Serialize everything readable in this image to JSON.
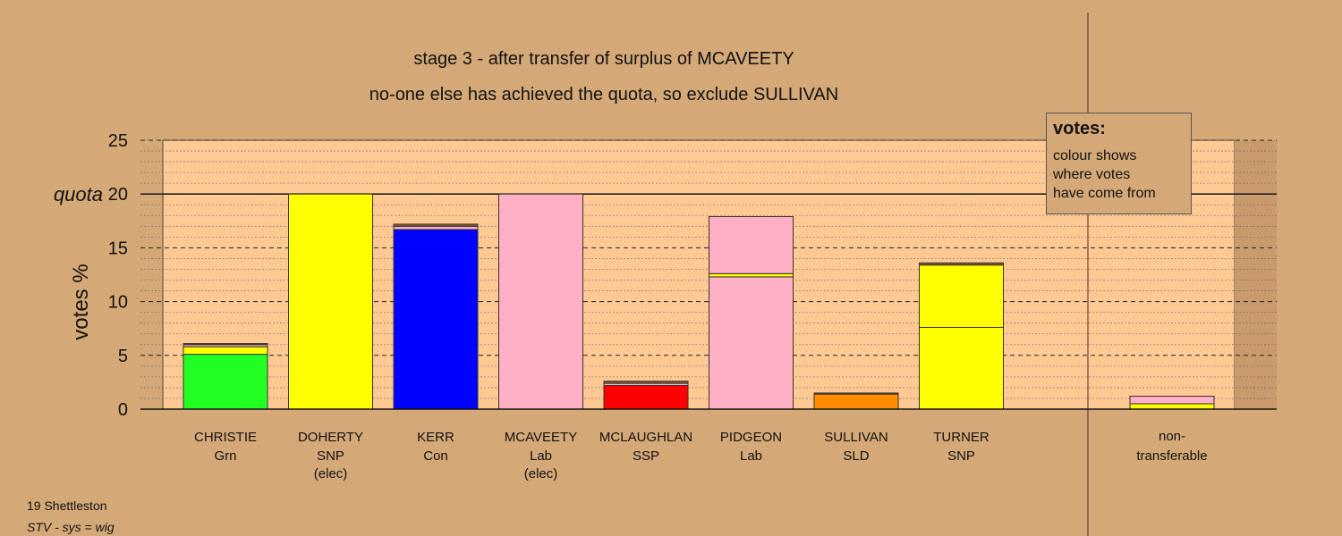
{
  "chart_data": {
    "type": "bar",
    "title": "stage 3 - after transfer of surplus of MCAVEETY",
    "subtitle": "no-one else has achieved the quota, so exclude SULLIVAN",
    "ylabel": "votes %",
    "quota_label": "quota",
    "quota": 20,
    "ylim": [
      0,
      25
    ],
    "yticks": [
      0,
      5,
      10,
      15,
      20,
      25
    ],
    "grid": true,
    "candidates": [
      {
        "name": "CHRISTIE",
        "party": "Grn",
        "note": "",
        "segments": [
          {
            "source": "Grn",
            "color": "#22ff22",
            "value": 5.1
          },
          {
            "source": "SNP",
            "color": "#ffff00",
            "value": 0.7
          },
          {
            "source": "Lab",
            "color": "#ffb0c4",
            "value": 0.2
          },
          {
            "source": "other",
            "color": "#8b5a2b",
            "value": 0.1
          }
        ]
      },
      {
        "name": "DOHERTY",
        "party": "SNP",
        "note": "(elec)",
        "segments": [
          {
            "source": "SNP",
            "color": "#ffff00",
            "value": 20.0
          }
        ]
      },
      {
        "name": "KERR",
        "party": "Con",
        "note": "",
        "segments": [
          {
            "source": "Con",
            "color": "#0000ff",
            "value": 16.7
          },
          {
            "source": "Lab",
            "color": "#ffb0c4",
            "value": 0.3
          },
          {
            "source": "other",
            "color": "#8b5a2b",
            "value": 0.2
          }
        ]
      },
      {
        "name": "MCAVEETY",
        "party": "Lab",
        "note": "(elec)",
        "segments": [
          {
            "source": "Lab",
            "color": "#ffb0c4",
            "value": 20.0
          }
        ]
      },
      {
        "name": "MCLAUGHLAN",
        "party": "SSP",
        "note": "",
        "segments": [
          {
            "source": "SSP",
            "color": "#ff0000",
            "value": 2.2
          },
          {
            "source": "Lab",
            "color": "#ffb0c4",
            "value": 0.2
          },
          {
            "source": "other",
            "color": "#8b5a2b",
            "value": 0.2
          }
        ]
      },
      {
        "name": "PIDGEON",
        "party": "Lab",
        "note": "",
        "segments": [
          {
            "source": "Lab",
            "color": "#ffb0c4",
            "value": 12.3
          },
          {
            "source": "SNP",
            "color": "#ffff00",
            "value": 0.3
          },
          {
            "source": "Lab",
            "color": "#ffb0c4",
            "value": 5.3
          }
        ]
      },
      {
        "name": "SULLIVAN",
        "party": "SLD",
        "note": "",
        "segments": [
          {
            "source": "SLD",
            "color": "#ff8c00",
            "value": 1.4
          },
          {
            "source": "other",
            "color": "#8b5a2b",
            "value": 0.1
          }
        ]
      },
      {
        "name": "TURNER",
        "party": "SNP",
        "note": "",
        "segments": [
          {
            "source": "SNP",
            "color": "#ffff00",
            "value": 7.6
          },
          {
            "source": "SNP",
            "color": "#ffff00",
            "value": 5.8
          },
          {
            "source": "other",
            "color": "#8b5a2b",
            "value": 0.2
          }
        ]
      }
    ],
    "non_transferable": {
      "label_line1": "non-",
      "label_line2": "transferable",
      "segments": [
        {
          "source": "SNP",
          "color": "#ffff00",
          "value": 0.5
        },
        {
          "source": "Lab",
          "color": "#ffb0c4",
          "value": 0.7
        }
      ]
    }
  },
  "legend": {
    "title": "votes:",
    "lines": [
      "colour shows",
      "where votes",
      "have come from"
    ]
  },
  "footer": {
    "ward": "19 Shettleston",
    "system": "STV - sys = wig"
  },
  "colors": {
    "background": "#d4a977",
    "plot_area": "#ffc994",
    "plot_area_shade": "#c99a6c"
  }
}
